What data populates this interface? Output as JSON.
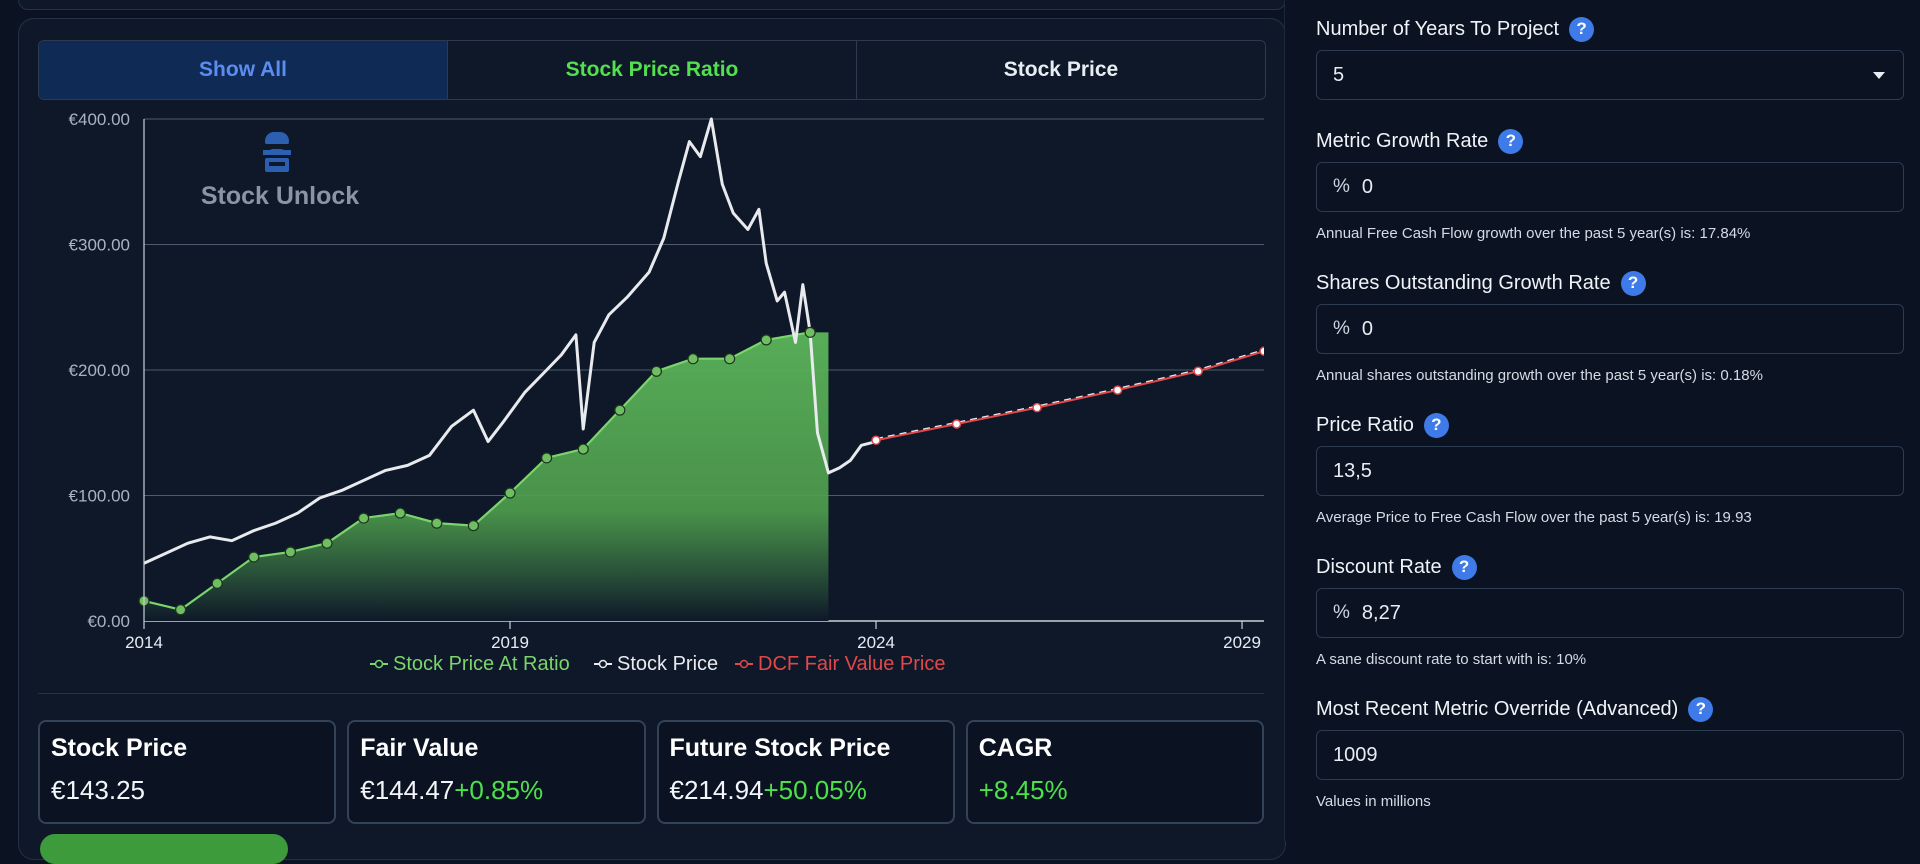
{
  "tabs": [
    {
      "label": "Show All"
    },
    {
      "label": "Stock Price Ratio"
    },
    {
      "label": "Stock Price"
    }
  ],
  "watermark": {
    "text": "Stock Unlock"
  },
  "chart_data": {
    "type": "line",
    "title": "",
    "xlabel": "",
    "ylabel": "",
    "x_ticks": [
      "2014",
      "2019",
      "2024",
      "2029"
    ],
    "y_ticks": [
      "€0.00",
      "€100.00",
      "€200.00",
      "€300.00",
      "€400.00"
    ],
    "xlim": [
      2014,
      2029.3
    ],
    "ylim": [
      0,
      400
    ],
    "grid": true,
    "legend_position": "bottom",
    "series": [
      {
        "name": "Stock Price At Ratio",
        "color": "#7bd46c",
        "style": "area",
        "x": [
          2014.0,
          2014.5,
          2015.0,
          2015.5,
          2016.0,
          2016.5,
          2017.0,
          2017.5,
          2018.0,
          2018.5,
          2019.0,
          2019.5,
          2020.0,
          2020.5,
          2021.0,
          2021.5,
          2022.0,
          2022.5,
          2023.1
        ],
        "values": [
          16,
          9,
          30,
          51,
          55,
          62,
          82,
          86,
          78,
          76,
          102,
          130,
          137,
          168,
          199,
          209,
          209,
          224,
          230
        ]
      },
      {
        "name": "Stock Price",
        "color": "#e8eaee",
        "style": "line",
        "x": [
          2014.0,
          2014.3,
          2014.6,
          2014.9,
          2015.2,
          2015.5,
          2015.8,
          2016.1,
          2016.4,
          2016.7,
          2017.0,
          2017.3,
          2017.6,
          2017.9,
          2018.2,
          2018.5,
          2018.7,
          2018.9,
          2019.2,
          2019.5,
          2019.7,
          2019.9,
          2020.0,
          2020.15,
          2020.35,
          2020.6,
          2020.9,
          2021.1,
          2021.3,
          2021.45,
          2021.6,
          2021.75,
          2021.9,
          2022.05,
          2022.25,
          2022.4,
          2022.5,
          2022.65,
          2022.75,
          2022.9,
          2023.0,
          2023.1,
          2023.2,
          2023.35,
          2023.5,
          2023.65,
          2023.8,
          2024.0
        ],
        "values": [
          46,
          54,
          62,
          67,
          64,
          72,
          78,
          86,
          98,
          104,
          112,
          120,
          124,
          132,
          155,
          168,
          143,
          158,
          182,
          200,
          212,
          228,
          153,
          222,
          244,
          258,
          278,
          305,
          350,
          382,
          370,
          400,
          348,
          325,
          312,
          328,
          285,
          255,
          262,
          222,
          268,
          230,
          150,
          118,
          122,
          128,
          140,
          143
        ]
      },
      {
        "name": "DCF Fair Value Price",
        "color": "#e0484a",
        "style": "dashed",
        "x": [
          2024.0,
          2025.1,
          2026.2,
          2027.3,
          2028.4,
          2029.3
        ],
        "values": [
          144,
          157,
          170,
          184,
          199,
          215
        ]
      }
    ]
  },
  "stats": [
    {
      "title": "Stock Price",
      "value": "€143.25",
      "change": ""
    },
    {
      "title": "Fair Value",
      "value": "€144.47",
      "change": "+0.85%"
    },
    {
      "title": "Future Stock Price",
      "value": "€214.94",
      "change": "+50.05%"
    },
    {
      "title": "CAGR",
      "value": "",
      "change": "+8.45%"
    }
  ],
  "form": {
    "years": {
      "label": "Number of Years To Project",
      "value": "5"
    },
    "metric_growth": {
      "label": "Metric Growth Rate",
      "prefix": "%",
      "value": "0",
      "hint": "Annual Free Cash Flow growth over the past 5 year(s) is: 17.84%"
    },
    "shares_growth": {
      "label": "Shares Outstanding Growth Rate",
      "prefix": "%",
      "value": "0",
      "hint": "Annual shares outstanding growth over the past 5 year(s) is: 0.18%"
    },
    "price_ratio": {
      "label": "Price Ratio",
      "value": "13,5",
      "hint": "Average Price to Free Cash Flow over the past 5 year(s) is: 19.93"
    },
    "discount_rate": {
      "label": "Discount Rate",
      "prefix": "%",
      "value": "8,27",
      "hint": "A sane discount rate to start with is: 10%"
    },
    "metric_override": {
      "label": "Most Recent Metric Override (Advanced)",
      "value": "1009",
      "hint": "Values in millions"
    }
  },
  "help_glyph": "?"
}
